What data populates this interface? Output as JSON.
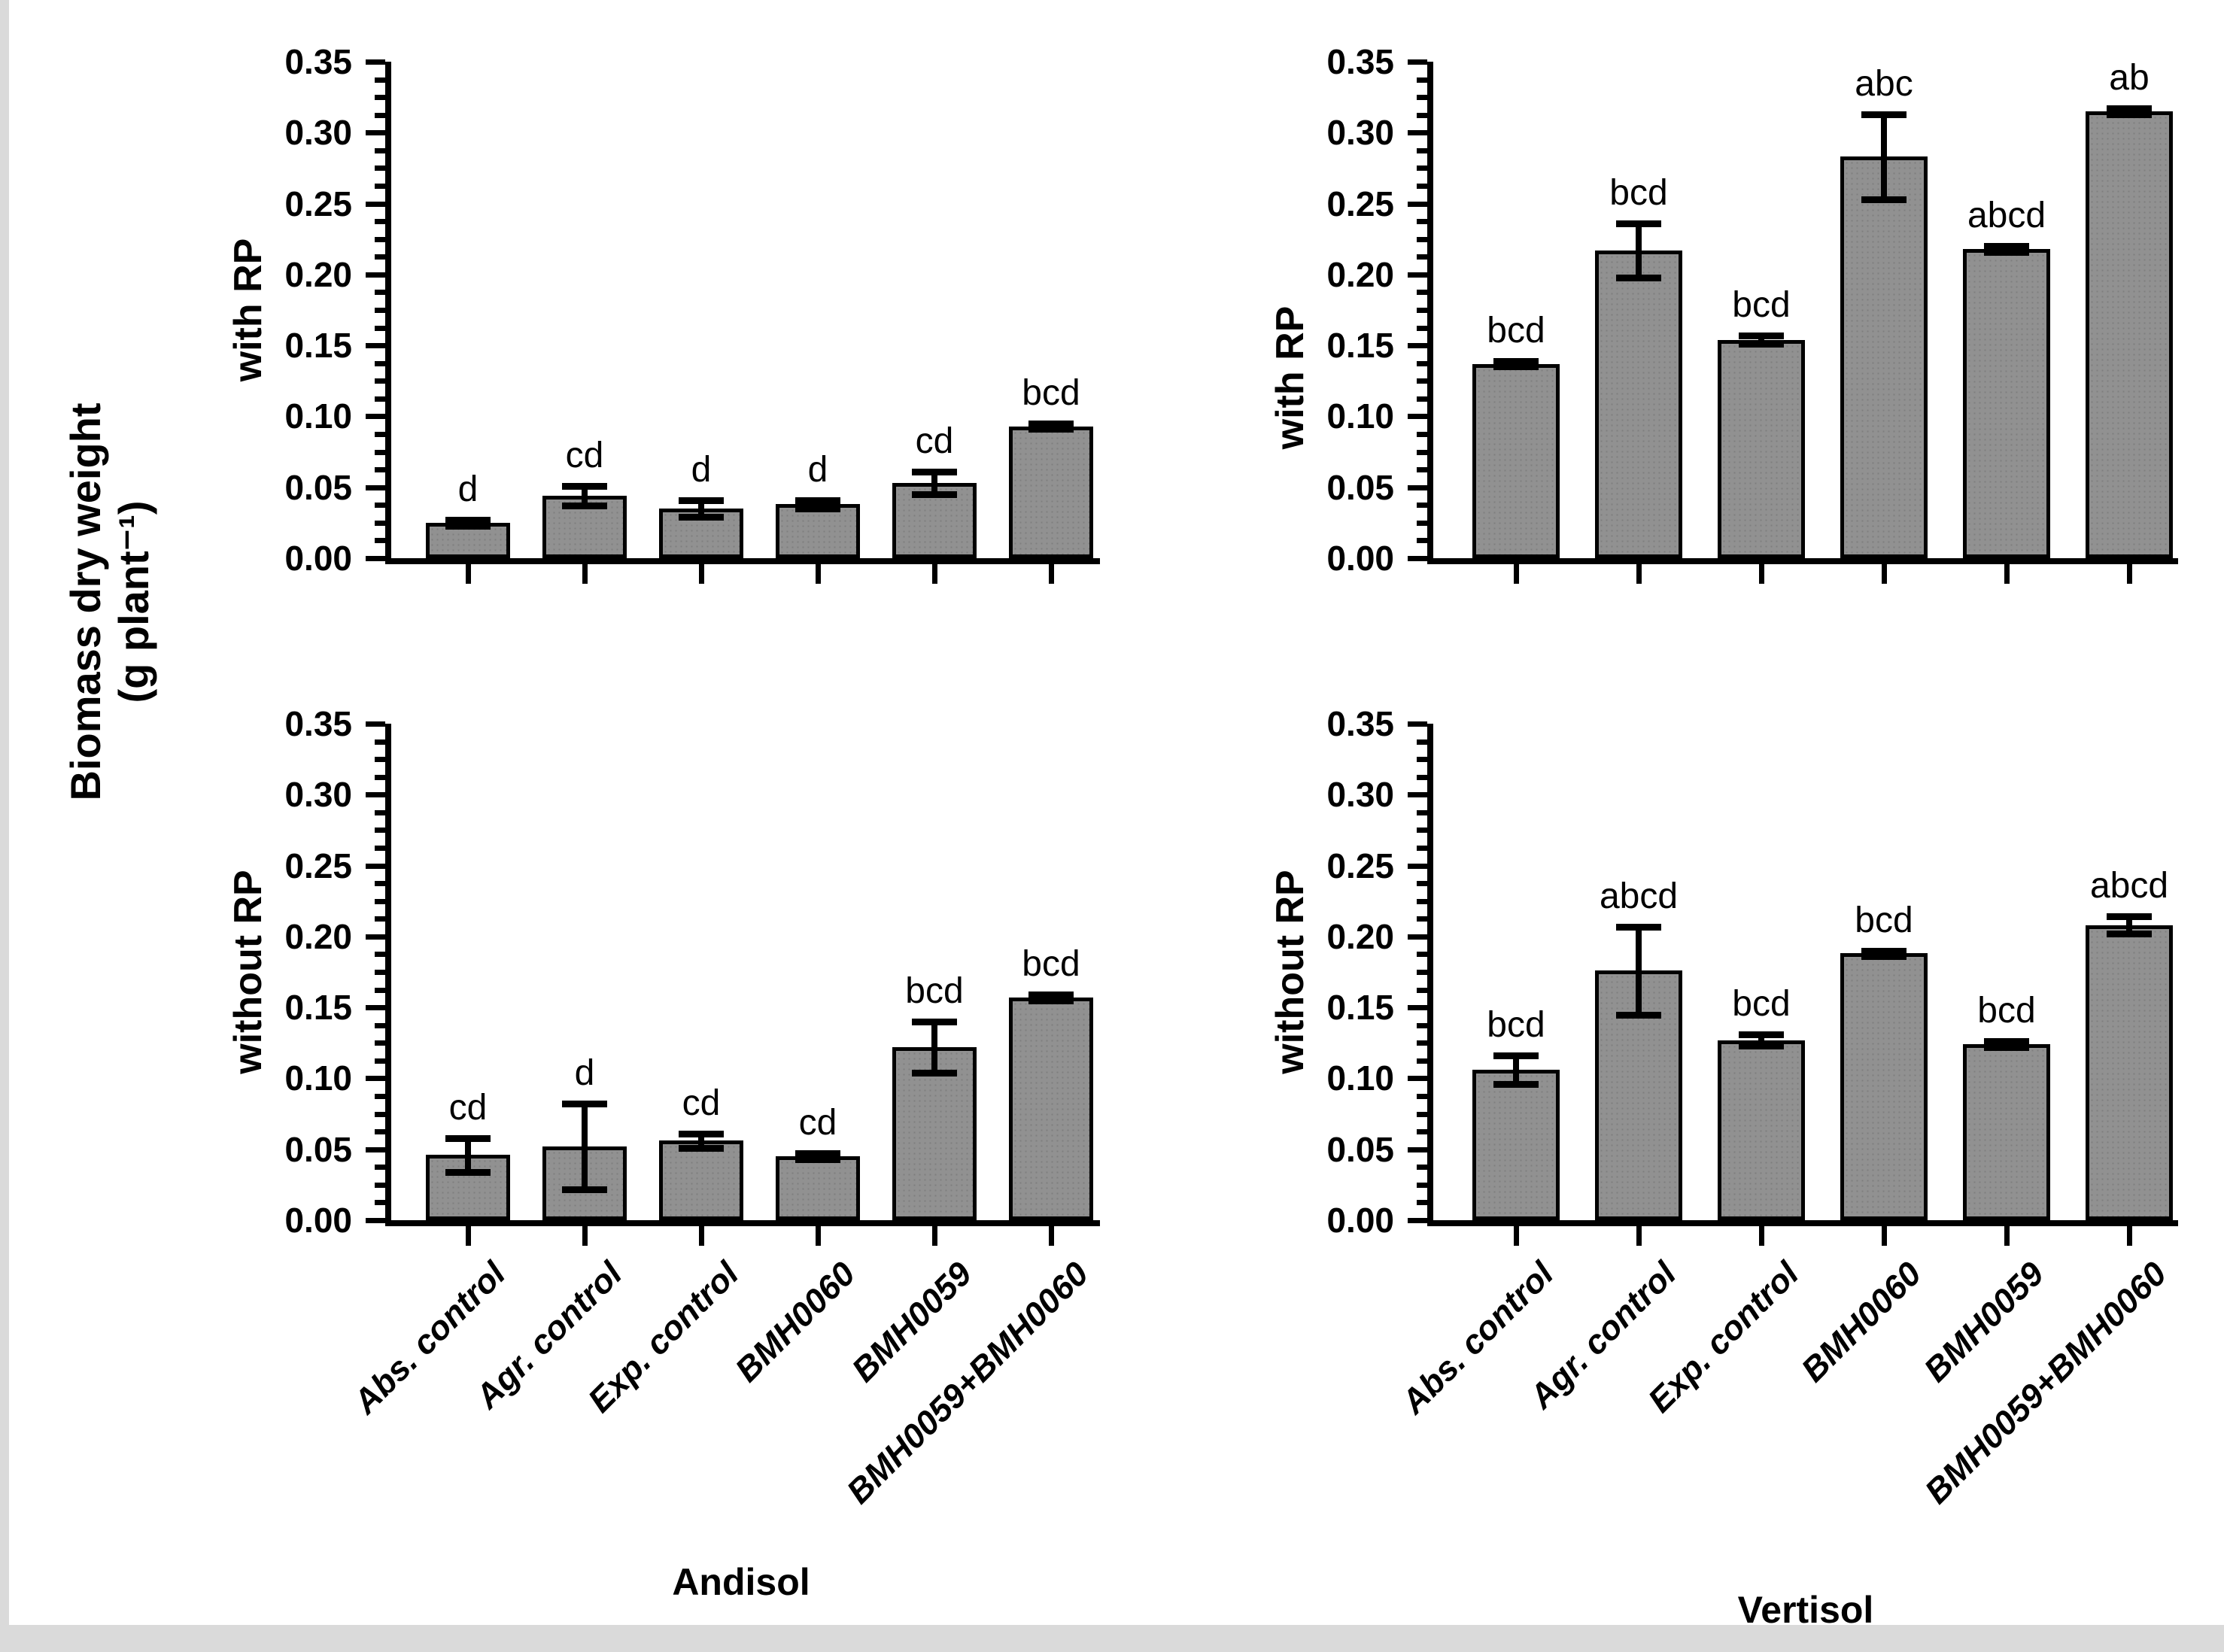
{
  "figure": {
    "y_axis_label": {
      "line1": "Biomass dry weight",
      "line2": "(g plant⁻¹)"
    },
    "column_titles": [
      "Andisol",
      "Vertisol"
    ],
    "row_labels": [
      "with RP",
      "without RP"
    ],
    "y_tick_labels": [
      "0.00",
      "0.05",
      "0.10",
      "0.15",
      "0.20",
      "0.25",
      "0.30",
      "0.35"
    ],
    "colors": {
      "bar_fill": "#919191",
      "bar_border": "#000000",
      "axis": "#000000",
      "text": "#000000",
      "page_edge": "#dadada"
    }
  },
  "chart_data": [
    {
      "id": "andisol-with-rp",
      "type": "bar",
      "row": 0,
      "col": 0,
      "row_label": "with RP",
      "column_title": "Andisol",
      "ylabel": "Biomass dry weight (g plant⁻¹)",
      "ylim": [
        0,
        0.35
      ],
      "ytick_step": 0.05,
      "grid": false,
      "categories": [
        "Abs. control",
        "Agr. control",
        "Exp. control",
        "BMH0060",
        "BMH0059",
        "BMH0059+BMH0060"
      ],
      "values": [
        0.025,
        0.044,
        0.035,
        0.038,
        0.053,
        0.093
      ],
      "errors": [
        0.002,
        0.007,
        0.006,
        0.003,
        0.008,
        0.002
      ],
      "sig_letters": [
        "d",
        "cd",
        "d",
        "d",
        "cd",
        "bcd"
      ]
    },
    {
      "id": "vertisol-with-rp",
      "type": "bar",
      "row": 0,
      "col": 1,
      "row_label": "with RP",
      "column_title": "Vertisol",
      "ylabel": "Biomass dry weight (g plant⁻¹)",
      "ylim": [
        0,
        0.35
      ],
      "ytick_step": 0.05,
      "grid": false,
      "categories": [
        "Abs. control",
        "Agr. control",
        "Exp. control",
        "BMH0060",
        "BMH0059",
        "BMH0059+BMH0060"
      ],
      "values": [
        0.137,
        0.217,
        0.154,
        0.283,
        0.218,
        0.315
      ],
      "errors": [
        0.002,
        0.019,
        0.003,
        0.03,
        0.002,
        0.002
      ],
      "sig_letters": [
        "bcd",
        "bcd",
        "bcd",
        "abc",
        "abcd",
        "ab"
      ]
    },
    {
      "id": "andisol-without-rp",
      "type": "bar",
      "row": 1,
      "col": 0,
      "row_label": "without RP",
      "column_title": "Andisol",
      "ylabel": "Biomass dry weight (g plant⁻¹)",
      "ylim": [
        0,
        0.35
      ],
      "ytick_step": 0.05,
      "grid": false,
      "categories": [
        "Abs. control",
        "Agr. control",
        "Exp. control",
        "BMH0060",
        "BMH0059",
        "BMH0059+BMH0060"
      ],
      "values": [
        0.046,
        0.052,
        0.056,
        0.045,
        0.122,
        0.157
      ],
      "errors": [
        0.012,
        0.03,
        0.005,
        0.002,
        0.018,
        0.002
      ],
      "sig_letters": [
        "cd",
        "d",
        "cd",
        "cd",
        "bcd",
        "bcd"
      ]
    },
    {
      "id": "vertisol-without-rp",
      "type": "bar",
      "row": 1,
      "col": 1,
      "row_label": "without RP",
      "column_title": "Vertisol",
      "ylabel": "Biomass dry weight (g plant⁻¹)",
      "ylim": [
        0,
        0.35
      ],
      "ytick_step": 0.05,
      "grid": false,
      "categories": [
        "Abs. control",
        "Agr. control",
        "Exp. control",
        "BMH0060",
        "BMH0059",
        "BMH0059+BMH0060"
      ],
      "values": [
        0.106,
        0.176,
        0.127,
        0.188,
        0.124,
        0.208
      ],
      "errors": [
        0.01,
        0.031,
        0.004,
        0.002,
        0.002,
        0.006
      ],
      "sig_letters": [
        "bcd",
        "abcd",
        "bcd",
        "bcd",
        "bcd",
        "abcd"
      ]
    }
  ]
}
